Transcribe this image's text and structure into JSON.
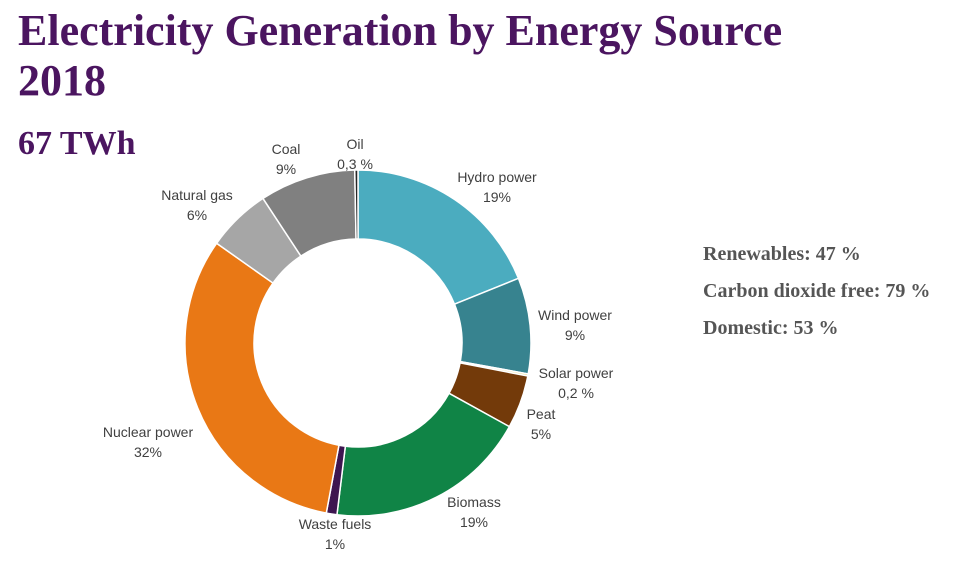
{
  "header": {
    "title": "Electricity Generation by Energy Source 2018",
    "subtitle": "67 TWh"
  },
  "stats": [
    "Renewables: 47 %",
    "Carbon dioxide free: 79 %",
    "Domestic: 53 %"
  ],
  "chart_data": {
    "type": "pie",
    "style": "donut",
    "title": "Electricity Generation by Energy Source 2018",
    "subtitle": "67 TWh",
    "slices": [
      {
        "name": "Hydro power",
        "label": "19%",
        "value": 19,
        "color": "#4bacbf"
      },
      {
        "name": "Wind power",
        "label": "9%",
        "value": 9,
        "color": "#37838f"
      },
      {
        "name": "Solar power",
        "label": "0,2 %",
        "value": 0.2,
        "color": "#f2e3a0"
      },
      {
        "name": "Peat",
        "label": "5%",
        "value": 5,
        "color": "#733a0a"
      },
      {
        "name": "Biomass",
        "label": "19%",
        "value": 19,
        "color": "#108446"
      },
      {
        "name": "Waste fuels",
        "label": "1%",
        "value": 1,
        "color": "#3d1550"
      },
      {
        "name": "Nuclear power",
        "label": "32%",
        "value": 32,
        "color": "#e97815"
      },
      {
        "name": "Natural gas",
        "label": "6%",
        "value": 6,
        "color": "#a6a6a6"
      },
      {
        "name": "Coal",
        "label": "9%",
        "value": 9,
        "color": "#808080"
      },
      {
        "name": "Oil",
        "label": "0,3 %",
        "value": 0.3,
        "color": "#262626"
      }
    ]
  }
}
